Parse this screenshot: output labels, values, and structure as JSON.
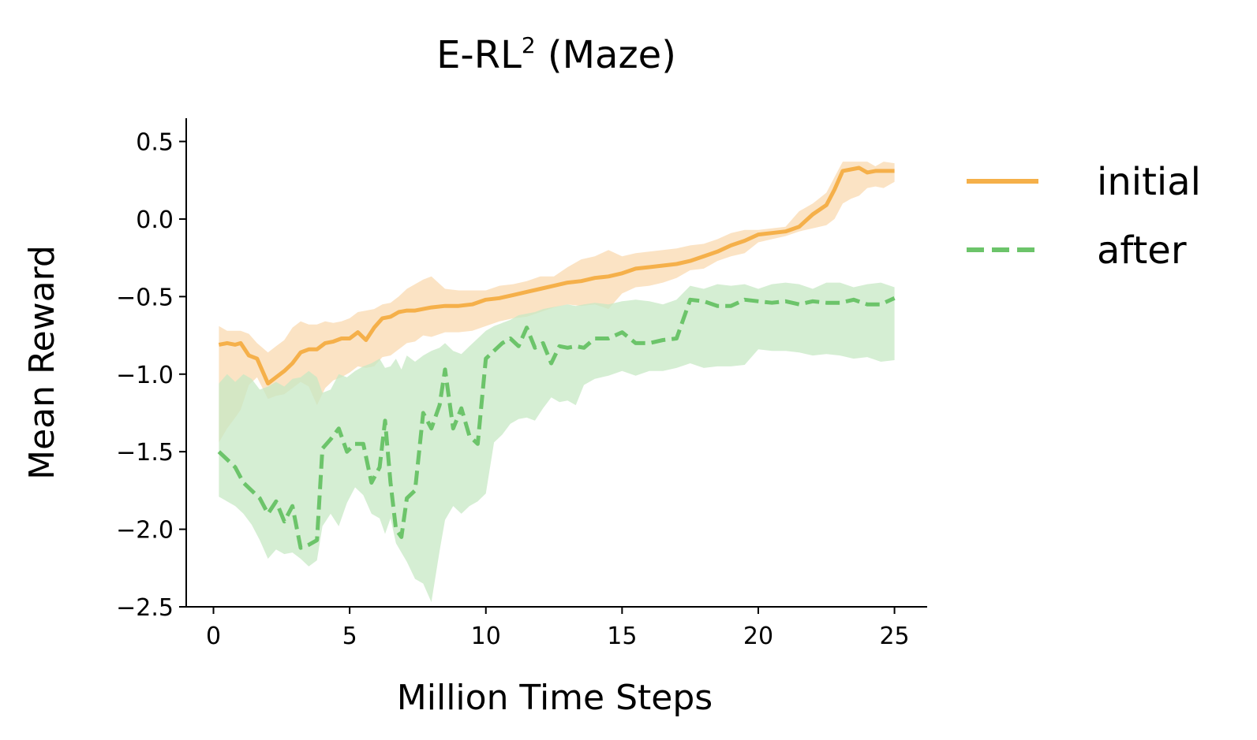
{
  "chart_data": {
    "type": "line",
    "title": "E-RL",
    "title_superscript": "2",
    "title_suffix": " (Maze)",
    "xlabel": "Million Time Steps",
    "ylabel": "Mean Reward",
    "xlim": [
      -1,
      26.2
    ],
    "ylim": [
      -2.5,
      0.65
    ],
    "xticks": [
      0,
      5,
      10,
      15,
      20,
      25
    ],
    "xtick_labels": [
      "0",
      "5",
      "10",
      "15",
      "20",
      "25"
    ],
    "yticks": [
      0.5,
      0.0,
      -0.5,
      -1.0,
      -1.5,
      -2.0,
      -2.5
    ],
    "ytick_labels": [
      "0.5",
      "0.0",
      "−0.5",
      "−1.0",
      "−1.5",
      "−2.0",
      "−2.5"
    ],
    "grid": false,
    "legend_position": "outside-right",
    "series": [
      {
        "name": "initial",
        "color": "#f5b04a",
        "band_color": "#fad9b0",
        "style": "solid",
        "x": [
          0.2,
          0.5,
          0.8,
          1.0,
          1.3,
          1.6,
          2.0,
          2.3,
          2.6,
          2.9,
          3.2,
          3.5,
          3.8,
          4.1,
          4.4,
          4.7,
          5.0,
          5.3,
          5.6,
          5.9,
          6.2,
          6.5,
          6.8,
          7.1,
          7.4,
          7.7,
          8.0,
          8.5,
          9.0,
          9.5,
          10.0,
          10.5,
          11.0,
          11.5,
          12.0,
          12.5,
          13.0,
          13.5,
          14.0,
          14.5,
          15.0,
          15.5,
          16.0,
          16.5,
          17.0,
          17.5,
          18.0,
          18.5,
          19.0,
          19.5,
          20.0,
          20.5,
          21.0,
          21.5,
          22.0,
          22.5,
          22.8,
          23.1,
          23.4,
          23.7,
          24.0,
          24.3,
          24.6,
          25.0
        ],
        "y": [
          -0.81,
          -0.8,
          -0.81,
          -0.8,
          -0.88,
          -0.9,
          -1.06,
          -1.02,
          -0.98,
          -0.93,
          -0.86,
          -0.84,
          -0.84,
          -0.8,
          -0.79,
          -0.77,
          -0.77,
          -0.73,
          -0.78,
          -0.7,
          -0.64,
          -0.63,
          -0.6,
          -0.59,
          -0.59,
          -0.58,
          -0.57,
          -0.56,
          -0.56,
          -0.55,
          -0.52,
          -0.51,
          -0.49,
          -0.47,
          -0.45,
          -0.43,
          -0.41,
          -0.4,
          -0.38,
          -0.37,
          -0.35,
          -0.32,
          -0.31,
          -0.3,
          -0.29,
          -0.27,
          -0.24,
          -0.21,
          -0.17,
          -0.14,
          -0.1,
          -0.09,
          -0.08,
          -0.05,
          0.03,
          0.09,
          0.19,
          0.31,
          0.32,
          0.33,
          0.3,
          0.31,
          0.31,
          0.31
        ],
        "upper": [
          -0.69,
          -0.72,
          -0.72,
          -0.72,
          -0.74,
          -0.8,
          -0.86,
          -0.82,
          -0.78,
          -0.7,
          -0.66,
          -0.68,
          -0.68,
          -0.66,
          -0.67,
          -0.66,
          -0.64,
          -0.6,
          -0.59,
          -0.58,
          -0.55,
          -0.54,
          -0.5,
          -0.45,
          -0.42,
          -0.39,
          -0.37,
          -0.45,
          -0.46,
          -0.46,
          -0.46,
          -0.43,
          -0.42,
          -0.4,
          -0.37,
          -0.37,
          -0.31,
          -0.26,
          -0.24,
          -0.2,
          -0.24,
          -0.22,
          -0.21,
          -0.2,
          -0.19,
          -0.17,
          -0.16,
          -0.13,
          -0.09,
          -0.07,
          -0.07,
          -0.06,
          -0.05,
          0.05,
          0.1,
          0.17,
          0.27,
          0.37,
          0.37,
          0.37,
          0.37,
          0.34,
          0.37,
          0.36
        ],
        "lower": [
          -1.44,
          -1.35,
          -1.28,
          -1.23,
          -1.07,
          -1.02,
          -1.16,
          -1.14,
          -1.13,
          -1.09,
          -1.05,
          -1.08,
          -1.2,
          -1.09,
          -1.04,
          -1.02,
          -0.99,
          -0.95,
          -0.96,
          -0.95,
          -0.89,
          -0.88,
          -0.84,
          -0.8,
          -0.79,
          -0.75,
          -0.76,
          -0.73,
          -0.73,
          -0.72,
          -0.69,
          -0.66,
          -0.64,
          -0.63,
          -0.6,
          -0.57,
          -0.55,
          -0.56,
          -0.55,
          -0.58,
          -0.48,
          -0.44,
          -0.43,
          -0.41,
          -0.38,
          -0.33,
          -0.32,
          -0.27,
          -0.24,
          -0.22,
          -0.15,
          -0.13,
          -0.11,
          -0.08,
          -0.06,
          -0.04,
          0.0,
          0.1,
          0.13,
          0.15,
          0.2,
          0.21,
          0.2,
          0.24
        ]
      },
      {
        "name": "after",
        "color": "#6cc46a",
        "band_color": "#c7e8c4",
        "style": "dashed",
        "x": [
          0.2,
          0.5,
          0.8,
          1.1,
          1.4,
          1.7,
          2.0,
          2.3,
          2.6,
          2.9,
          3.2,
          3.5,
          3.8,
          4.0,
          4.3,
          4.6,
          4.9,
          5.2,
          5.5,
          5.8,
          6.1,
          6.3,
          6.5,
          6.7,
          6.9,
          7.1,
          7.4,
          7.7,
          8.0,
          8.3,
          8.5,
          8.8,
          9.1,
          9.4,
          9.7,
          10.0,
          10.3,
          10.6,
          10.9,
          11.2,
          11.5,
          11.8,
          12.1,
          12.4,
          12.7,
          13.0,
          13.3,
          13.6,
          14.0,
          14.5,
          15.0,
          15.5,
          16.0,
          16.5,
          17.0,
          17.5,
          18.0,
          18.5,
          19.0,
          19.5,
          20.0,
          20.5,
          21.0,
          21.5,
          22.0,
          22.5,
          23.0,
          23.5,
          24.0,
          24.5,
          25.0
        ],
        "y": [
          -1.5,
          -1.55,
          -1.6,
          -1.7,
          -1.75,
          -1.8,
          -1.9,
          -1.82,
          -1.95,
          -1.85,
          -2.12,
          -2.1,
          -2.07,
          -1.48,
          -1.42,
          -1.35,
          -1.5,
          -1.45,
          -1.45,
          -1.7,
          -1.6,
          -1.3,
          -1.7,
          -2.0,
          -2.05,
          -1.8,
          -1.75,
          -1.25,
          -1.35,
          -1.2,
          -0.97,
          -1.35,
          -1.22,
          -1.4,
          -1.45,
          -0.9,
          -0.85,
          -0.8,
          -0.77,
          -0.82,
          -0.7,
          -0.83,
          -0.8,
          -0.93,
          -0.82,
          -0.83,
          -0.82,
          -0.83,
          -0.77,
          -0.77,
          -0.73,
          -0.8,
          -0.8,
          -0.78,
          -0.77,
          -0.52,
          -0.53,
          -0.56,
          -0.56,
          -0.52,
          -0.53,
          -0.54,
          -0.53,
          -0.55,
          -0.53,
          -0.54,
          -0.54,
          -0.52,
          -0.55,
          -0.55,
          -0.51
        ],
        "upper": [
          -1.06,
          -1.0,
          -1.05,
          -1.0,
          -1.03,
          -1.1,
          -1.08,
          -1.05,
          -1.08,
          -1.03,
          -1.02,
          -0.98,
          -1.02,
          -1.12,
          -1.1,
          -1.0,
          -1.02,
          -0.98,
          -0.95,
          -0.93,
          -0.9,
          -0.96,
          -0.95,
          -0.9,
          -0.97,
          -0.88,
          -0.92,
          -0.88,
          -0.85,
          -0.83,
          -0.8,
          -0.85,
          -0.87,
          -0.82,
          -0.77,
          -0.72,
          -0.69,
          -0.67,
          -0.65,
          -0.62,
          -0.61,
          -0.6,
          -0.58,
          -0.57,
          -0.56,
          -0.55,
          -0.56,
          -0.55,
          -0.54,
          -0.55,
          -0.53,
          -0.52,
          -0.53,
          -0.55,
          -0.52,
          -0.43,
          -0.45,
          -0.42,
          -0.43,
          -0.42,
          -0.45,
          -0.42,
          -0.41,
          -0.42,
          -0.45,
          -0.41,
          -0.41,
          -0.44,
          -0.42,
          -0.41,
          -0.44
        ],
        "lower": [
          -1.79,
          -1.82,
          -1.85,
          -1.9,
          -1.97,
          -2.07,
          -2.19,
          -2.13,
          -2.16,
          -2.15,
          -2.19,
          -2.24,
          -2.2,
          -1.98,
          -1.9,
          -1.98,
          -1.83,
          -1.73,
          -1.78,
          -1.9,
          -1.93,
          -2.03,
          -1.93,
          -2.09,
          -2.15,
          -2.21,
          -2.32,
          -2.35,
          -2.47,
          -2.14,
          -1.94,
          -1.85,
          -1.9,
          -1.85,
          -1.82,
          -1.77,
          -1.44,
          -1.39,
          -1.32,
          -1.29,
          -1.28,
          -1.3,
          -1.22,
          -1.15,
          -1.18,
          -1.17,
          -1.2,
          -1.07,
          -1.03,
          -1.01,
          -0.98,
          -1.01,
          -0.98,
          -0.98,
          -0.96,
          -0.93,
          -0.96,
          -0.95,
          -0.95,
          -0.94,
          -0.84,
          -0.85,
          -0.85,
          -0.86,
          -0.88,
          -0.87,
          -0.88,
          -0.9,
          -0.89,
          -0.92,
          -0.91
        ]
      }
    ]
  }
}
